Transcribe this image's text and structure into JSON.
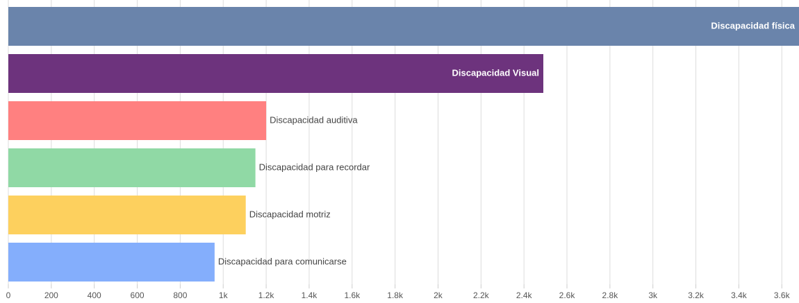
{
  "chart_data": {
    "type": "bar",
    "orientation": "horizontal",
    "categories": [
      "Discapacidad física",
      "Discapacidad Visual",
      "Discapacidad auditiva",
      "Discapacidad para recordar",
      "Discapacidad motriz",
      "Discapacidad para comunicarse"
    ],
    "values": [
      3680,
      2490,
      1200,
      1150,
      1105,
      960
    ],
    "colors": [
      "#6a84ab",
      "#6d337d",
      "#ff8080",
      "#90d9a5",
      "#fdd05e",
      "#84aefc"
    ],
    "xlim": [
      0,
      3680
    ],
    "xticks": [
      0,
      200,
      400,
      600,
      800,
      {
        "value": 1000,
        "label": "1k"
      },
      {
        "value": 1200,
        "label": "1.2k"
      },
      {
        "value": 1400,
        "label": "1.4k"
      },
      {
        "value": 1600,
        "label": "1.6k"
      },
      {
        "value": 1800,
        "label": "1.8k"
      },
      {
        "value": 2000,
        "label": "2k"
      },
      {
        "value": 2200,
        "label": "2.2k"
      },
      {
        "value": 2400,
        "label": "2.4k"
      },
      {
        "value": 2600,
        "label": "2.6k"
      },
      {
        "value": 2800,
        "label": "2.8k"
      },
      {
        "value": 3000,
        "label": "3k"
      },
      {
        "value": 3200,
        "label": "3.2k"
      },
      {
        "value": 3400,
        "label": "3.4k"
      },
      {
        "value": 3600,
        "label": "3.6k"
      }
    ],
    "grid": true
  }
}
